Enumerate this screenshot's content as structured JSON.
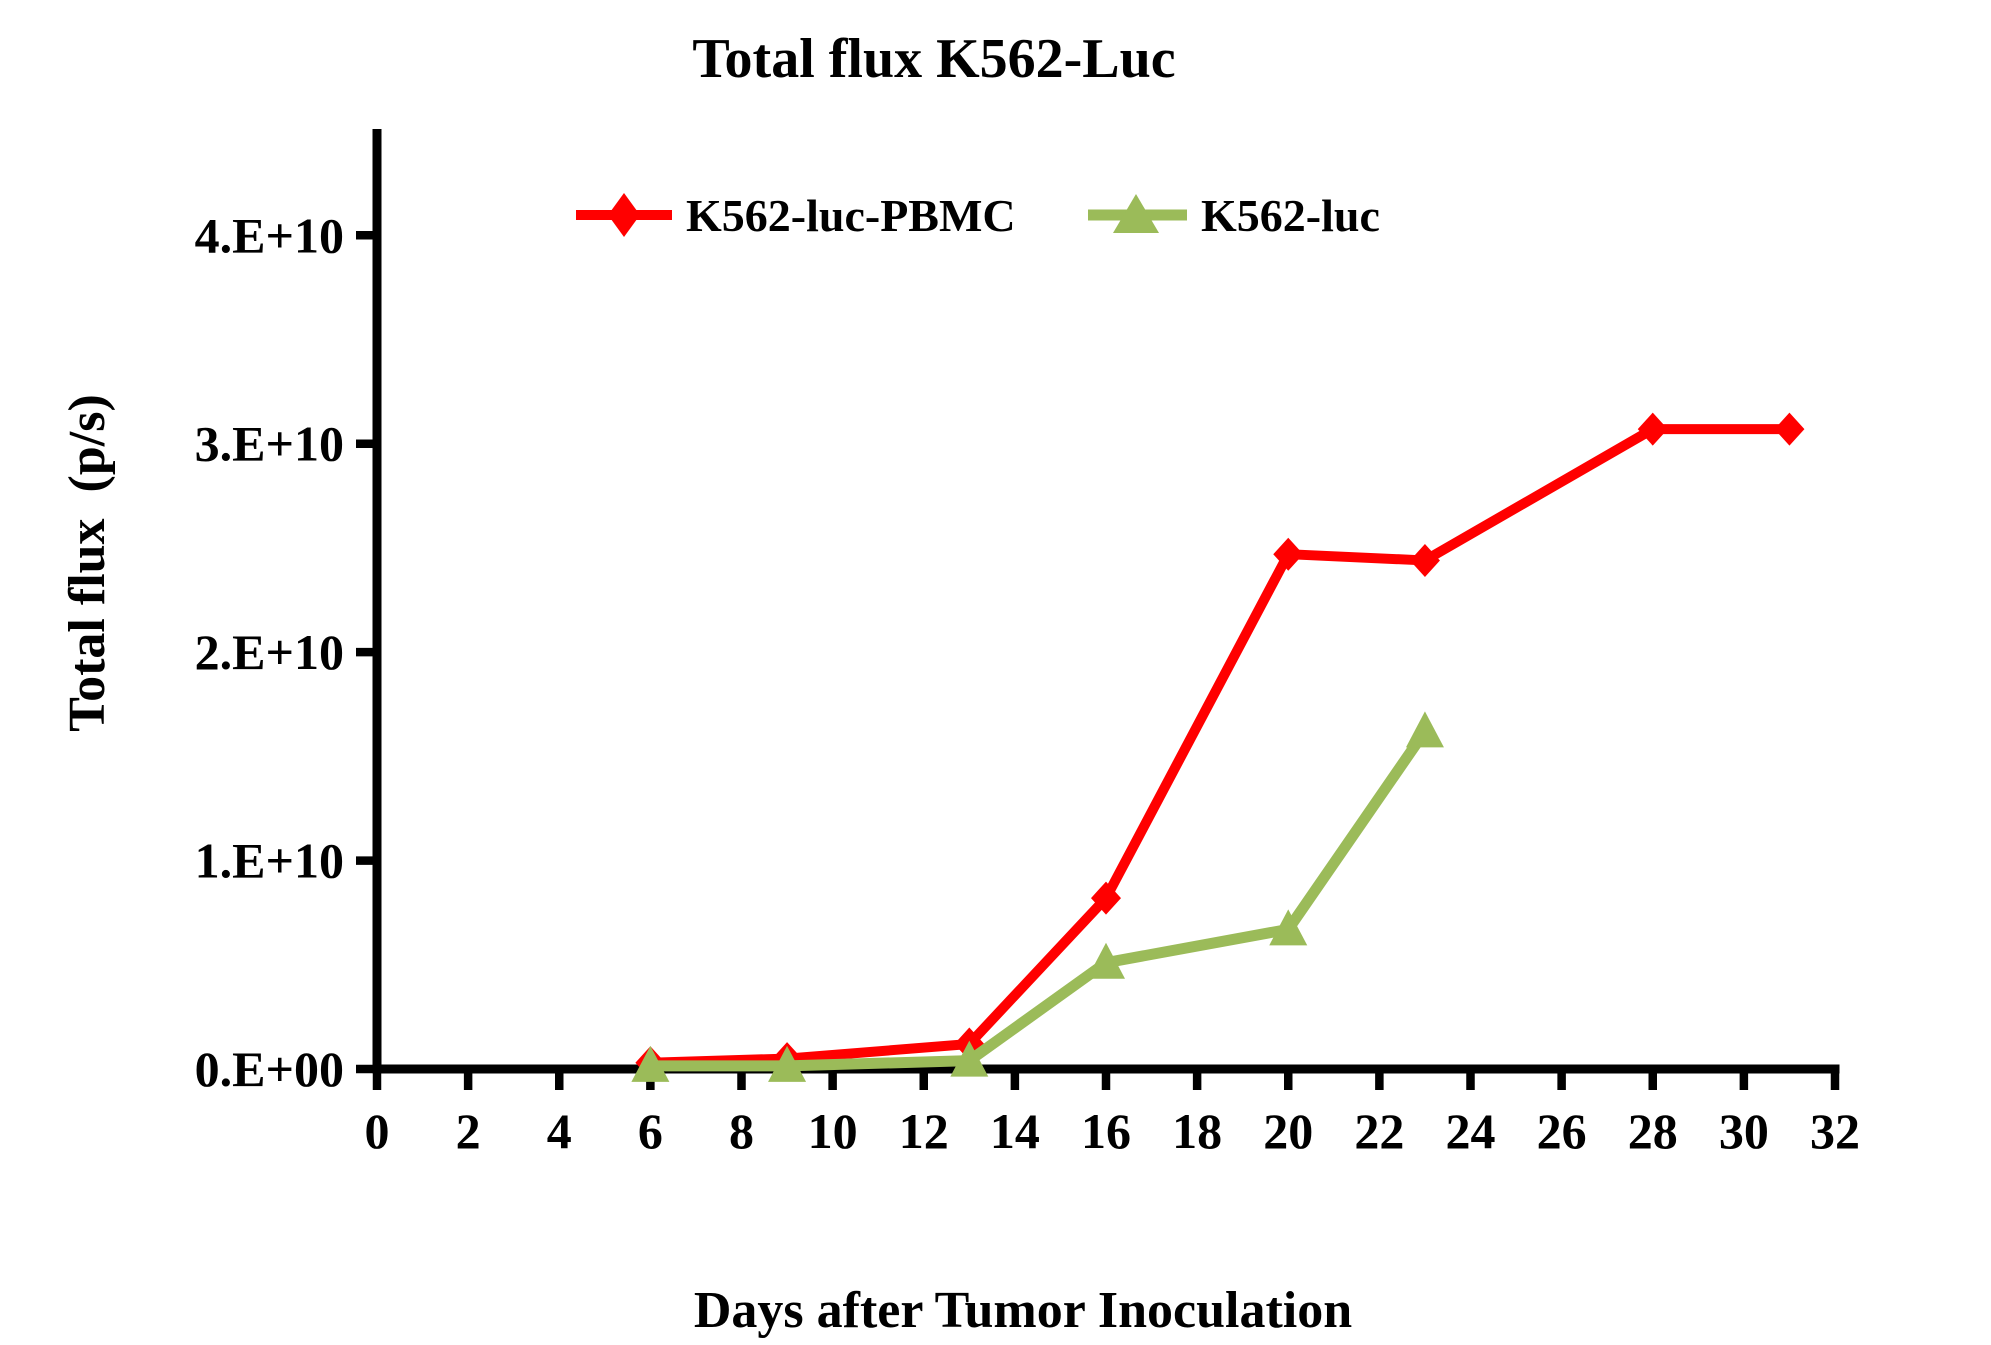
{
  "page": {
    "background_color": "#ffffff",
    "text_color": "#000000"
  },
  "chart_data": {
    "type": "line",
    "title": "Total flux K562-Luc",
    "xlabel": "Days after Tumor Inoculation",
    "ylabel": "Total flux  (p/s)",
    "xlim": [
      0,
      32
    ],
    "ylim": [
      0,
      45100000000.0
    ],
    "xticks": [
      0,
      2,
      4,
      6,
      8,
      10,
      12,
      14,
      16,
      18,
      20,
      22,
      24,
      26,
      28,
      30,
      32
    ],
    "yticks": [
      {
        "value": 0,
        "label": "0.E+00"
      },
      {
        "value": 10000000000.0,
        "label": "1.E+10"
      },
      {
        "value": 20000000000.0,
        "label": "2.E+10"
      },
      {
        "value": 30000000000.0,
        "label": "3.E+10"
      },
      {
        "value": 40000000000.0,
        "label": "4.E+10"
      }
    ],
    "grid": false,
    "legend_position": "top-center-inside",
    "axis_color": "#000000",
    "series": [
      {
        "name": "K562-luc-PBMC",
        "color": "#FF0000",
        "marker": "diamond",
        "line_width": 10,
        "x": [
          6,
          9,
          13,
          16,
          20,
          23,
          28,
          31
        ],
        "y": [
          300000000.0,
          500000000.0,
          1200000000.0,
          8200000000.0,
          24700000000.0,
          24400000000.0,
          30700000000.0,
          30700000000.0
        ]
      },
      {
        "name": "K562-luc",
        "color": "#9BBB59",
        "marker": "triangle",
        "line_width": 11,
        "x": [
          6,
          9,
          13,
          16,
          20,
          23
        ],
        "y": [
          150000000.0,
          150000000.0,
          400000000.0,
          5100000000.0,
          6700000000.0,
          16200000000.0
        ]
      }
    ]
  }
}
